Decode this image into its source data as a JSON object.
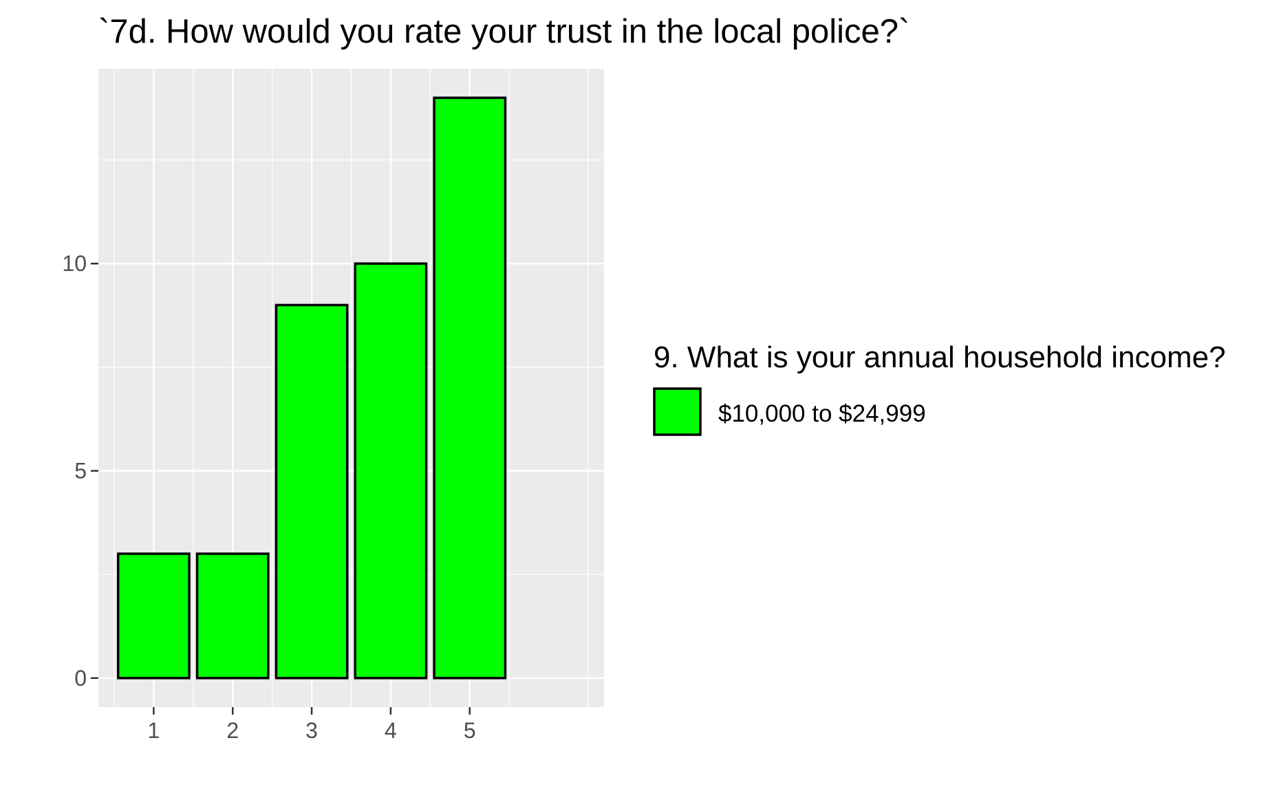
{
  "chart_data": {
    "type": "bar",
    "title": "`7d. How would you rate your trust in the local police?`",
    "xlabel": "",
    "ylabel": "",
    "categories": [
      "1",
      "2",
      "3",
      "4",
      "5"
    ],
    "series": [
      {
        "name": "$10,000 to $24,999",
        "values": [
          3,
          3,
          9,
          10,
          14
        ],
        "color": "#00ff00"
      }
    ],
    "ylim": [
      -0.7,
      14.7
    ],
    "xlim": [
      0.3,
      6.7
    ],
    "y_ticks": [
      0,
      5,
      10
    ],
    "y_tick_labels": [
      "0",
      "5",
      "10"
    ],
    "x_ticks": [
      1,
      2,
      3,
      4,
      5
    ],
    "x_tick_labels": [
      "1",
      "2",
      "3",
      "4",
      "5"
    ],
    "legend": {
      "title": "9. What is your annual household income?",
      "position": "right"
    },
    "grid": true,
    "panel_background": "#ebebeb",
    "bar_outline": "#000000"
  }
}
